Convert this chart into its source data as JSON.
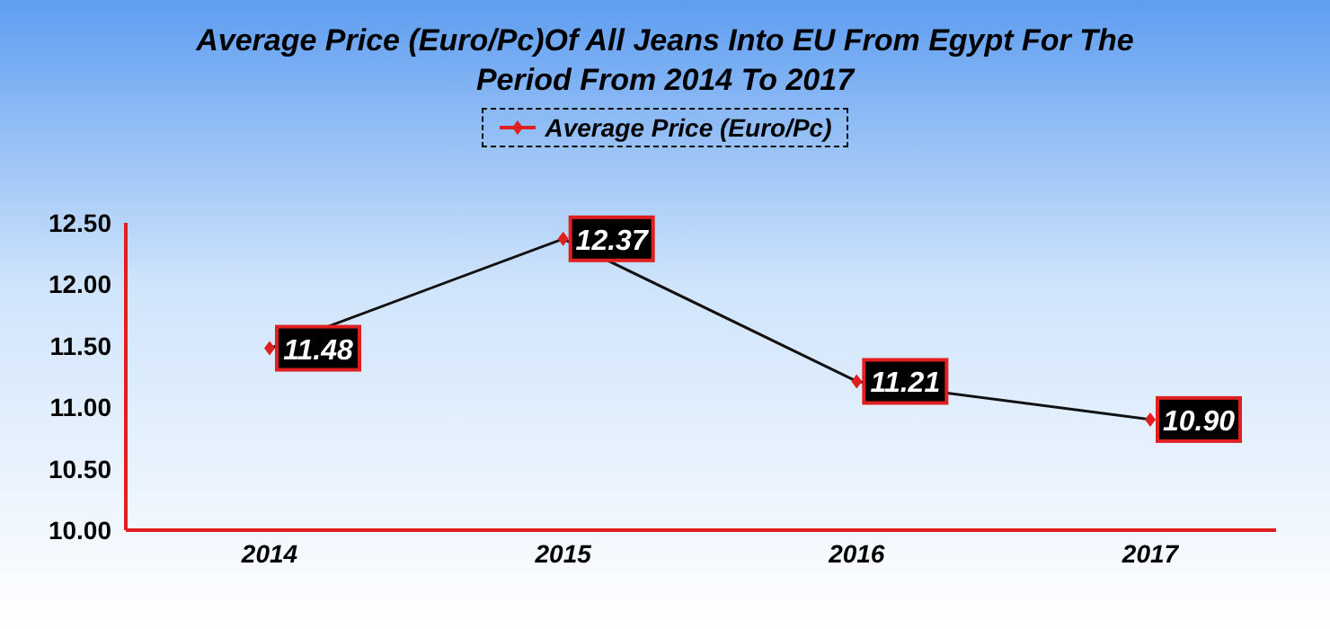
{
  "chart_data": {
    "type": "line",
    "title": "Average Price (Euro/Pc)Of All Jeans Into EU From Egypt For The Period From 2014 To 2017",
    "categories": [
      "2014",
      "2015",
      "2016",
      "2017"
    ],
    "series": [
      {
        "name": "Average Price (Euro/Pc)",
        "color": "#111111",
        "values": [
          11.48,
          12.37,
          11.21,
          10.9
        ],
        "value_labels": [
          "11.48",
          "12.37",
          "11.21",
          "10.90"
        ]
      }
    ],
    "ylim": [
      10,
      12.5
    ],
    "yticks": [
      {
        "value": 10,
        "label": "10.00"
      },
      {
        "value": 10.5,
        "label": "10.50"
      },
      {
        "value": 11,
        "label": "11.00"
      },
      {
        "value": 11.5,
        "label": "11.50"
      },
      {
        "value": 12,
        "label": "12.00"
      },
      {
        "value": 12.5,
        "label": "12.50"
      }
    ],
    "legend": "top",
    "grid": false,
    "marker": "diamond",
    "line_style": "solid"
  }
}
